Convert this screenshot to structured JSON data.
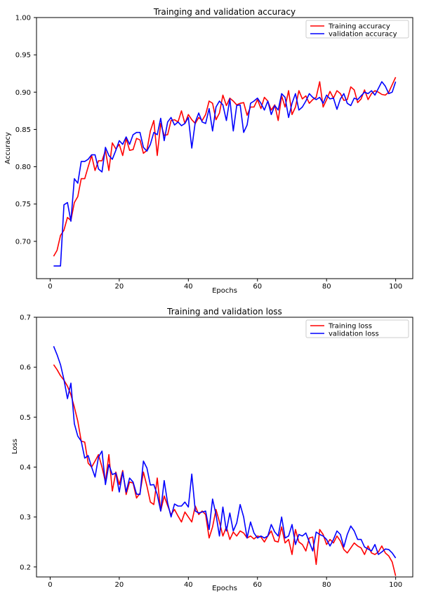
{
  "chart_data": [
    {
      "type": "line",
      "title": "Trainging and validation accuracy",
      "xlabel": "Epochs",
      "ylabel": "Accuracy",
      "xlim": [
        -3.95,
        104.95
      ],
      "ylim": [
        0.65,
        1.0
      ],
      "xticks": [
        0,
        20,
        40,
        60,
        80,
        100
      ],
      "yticks": [
        0.7,
        0.75,
        0.8,
        0.85,
        0.9,
        0.95,
        1.0
      ],
      "ytick_labels": [
        "0.70",
        "0.75",
        "0.80",
        "0.85",
        "0.90",
        "0.95",
        "1.00"
      ],
      "grid": false,
      "legend": "top-right",
      "series": [
        {
          "name": "Training accuracy",
          "color": "#ff0000",
          "x": [
            1,
            2,
            3,
            4,
            5,
            6,
            7,
            8,
            9,
            10,
            11,
            12,
            13,
            14,
            15,
            16,
            17,
            18,
            19,
            20,
            21,
            22,
            23,
            24,
            25,
            26,
            27,
            28,
            29,
            30,
            31,
            32,
            33,
            34,
            35,
            36,
            37,
            38,
            39,
            40,
            41,
            42,
            43,
            44,
            45,
            46,
            47,
            48,
            49,
            50,
            51,
            52,
            53,
            54,
            55,
            56,
            57,
            58,
            59,
            60,
            61,
            62,
            63,
            64,
            65,
            66,
            67,
            68,
            69,
            70,
            71,
            72,
            73,
            74,
            75,
            76,
            77,
            78,
            79,
            80,
            81,
            82,
            83,
            84,
            85,
            86,
            87,
            88,
            89,
            90,
            91,
            92,
            93,
            94,
            95,
            96,
            97,
            98,
            99,
            100
          ],
          "values": [
            0.68,
            0.688,
            0.708,
            0.715,
            0.732,
            0.728,
            0.752,
            0.76,
            0.784,
            0.784,
            0.8,
            0.815,
            0.795,
            0.808,
            0.808,
            0.822,
            0.795,
            0.832,
            0.824,
            0.83,
            0.815,
            0.838,
            0.822,
            0.823,
            0.838,
            0.836,
            0.818,
            0.822,
            0.848,
            0.862,
            0.815,
            0.858,
            0.842,
            0.843,
            0.862,
            0.863,
            0.86,
            0.875,
            0.858,
            0.87,
            0.863,
            0.858,
            0.866,
            0.862,
            0.87,
            0.888,
            0.885,
            0.863,
            0.872,
            0.896,
            0.882,
            0.892,
            0.888,
            0.883,
            0.885,
            0.886,
            0.869,
            0.88,
            0.88,
            0.89,
            0.878,
            0.893,
            0.888,
            0.876,
            0.883,
            0.862,
            0.895,
            0.88,
            0.902,
            0.87,
            0.88,
            0.902,
            0.891,
            0.895,
            0.885,
            0.89,
            0.893,
            0.914,
            0.88,
            0.89,
            0.901,
            0.892,
            0.902,
            0.898,
            0.889,
            0.89,
            0.907,
            0.903,
            0.886,
            0.891,
            0.903,
            0.89,
            0.898,
            0.902,
            0.9,
            0.897,
            0.896,
            0.9,
            0.91,
            0.92
          ]
        },
        {
          "name": "validation accuracy",
          "color": "#0000ff",
          "x": [
            1,
            2,
            3,
            4,
            5,
            6,
            7,
            8,
            9,
            10,
            11,
            12,
            13,
            14,
            15,
            16,
            17,
            18,
            19,
            20,
            21,
            22,
            23,
            24,
            25,
            26,
            27,
            28,
            29,
            30,
            31,
            32,
            33,
            34,
            35,
            36,
            37,
            38,
            39,
            40,
            41,
            42,
            43,
            44,
            45,
            46,
            47,
            48,
            49,
            50,
            51,
            52,
            53,
            54,
            55,
            56,
            57,
            58,
            59,
            60,
            61,
            62,
            63,
            64,
            65,
            66,
            67,
            68,
            69,
            70,
            71,
            72,
            73,
            74,
            75,
            76,
            77,
            78,
            79,
            80,
            81,
            82,
            83,
            84,
            85,
            86,
            87,
            88,
            89,
            90,
            91,
            92,
            93,
            94,
            95,
            96,
            97,
            98,
            99,
            100
          ],
          "values": [
            0.667,
            0.667,
            0.667,
            0.749,
            0.752,
            0.727,
            0.784,
            0.778,
            0.807,
            0.807,
            0.81,
            0.816,
            0.816,
            0.797,
            0.793,
            0.826,
            0.815,
            0.81,
            0.822,
            0.835,
            0.83,
            0.84,
            0.83,
            0.843,
            0.846,
            0.846,
            0.826,
            0.821,
            0.83,
            0.846,
            0.843,
            0.865,
            0.835,
            0.86,
            0.866,
            0.856,
            0.86,
            0.855,
            0.858,
            0.866,
            0.825,
            0.86,
            0.872,
            0.86,
            0.858,
            0.878,
            0.848,
            0.88,
            0.888,
            0.883,
            0.862,
            0.891,
            0.848,
            0.882,
            0.883,
            0.846,
            0.856,
            0.885,
            0.888,
            0.892,
            0.885,
            0.876,
            0.888,
            0.87,
            0.882,
            0.876,
            0.898,
            0.893,
            0.866,
            0.885,
            0.898,
            0.876,
            0.88,
            0.888,
            0.898,
            0.893,
            0.89,
            0.893,
            0.885,
            0.896,
            0.891,
            0.892,
            0.877,
            0.891,
            0.898,
            0.885,
            0.882,
            0.892,
            0.89,
            0.895,
            0.9,
            0.898,
            0.902,
            0.896,
            0.905,
            0.914,
            0.908,
            0.898,
            0.9,
            0.914
          ]
        }
      ]
    },
    {
      "type": "line",
      "title": "Training and validation loss",
      "xlabel": "Epochs",
      "ylabel": "Loss",
      "xlim": [
        -3.95,
        104.95
      ],
      "ylim": [
        0.18,
        0.7
      ],
      "xticks": [
        0,
        20,
        40,
        60,
        80,
        100
      ],
      "yticks": [
        0.2,
        0.3,
        0.4,
        0.5,
        0.6,
        0.7
      ],
      "ytick_labels": [
        "0.2",
        "0.3",
        "0.4",
        "0.5",
        "0.6",
        "0.7"
      ],
      "grid": false,
      "legend": "top-right",
      "series": [
        {
          "name": "Training loss",
          "color": "#ff0000",
          "x": [
            1,
            2,
            3,
            4,
            5,
            6,
            7,
            8,
            9,
            10,
            11,
            12,
            13,
            14,
            15,
            16,
            17,
            18,
            19,
            20,
            21,
            22,
            23,
            24,
            25,
            26,
            27,
            28,
            29,
            30,
            31,
            32,
            33,
            34,
            35,
            36,
            37,
            38,
            39,
            40,
            41,
            42,
            43,
            44,
            45,
            46,
            47,
            48,
            49,
            50,
            51,
            52,
            53,
            54,
            55,
            56,
            57,
            58,
            59,
            60,
            61,
            62,
            63,
            64,
            65,
            66,
            67,
            68,
            69,
            70,
            71,
            72,
            73,
            74,
            75,
            76,
            77,
            78,
            79,
            80,
            81,
            82,
            83,
            84,
            85,
            86,
            87,
            88,
            89,
            90,
            91,
            92,
            93,
            94,
            95,
            96,
            97,
            98,
            99,
            100
          ],
          "values": [
            0.605,
            0.595,
            0.583,
            0.574,
            0.562,
            0.545,
            0.52,
            0.492,
            0.452,
            0.45,
            0.408,
            0.4,
            0.412,
            0.425,
            0.4,
            0.37,
            0.425,
            0.352,
            0.39,
            0.365,
            0.393,
            0.345,
            0.37,
            0.368,
            0.338,
            0.348,
            0.39,
            0.362,
            0.33,
            0.325,
            0.378,
            0.312,
            0.342,
            0.323,
            0.305,
            0.315,
            0.302,
            0.29,
            0.31,
            0.3,
            0.29,
            0.322,
            0.305,
            0.312,
            0.305,
            0.258,
            0.28,
            0.315,
            0.29,
            0.262,
            0.28,
            0.255,
            0.27,
            0.262,
            0.272,
            0.268,
            0.258,
            0.262,
            0.256,
            0.262,
            0.26,
            0.25,
            0.262,
            0.272,
            0.252,
            0.25,
            0.28,
            0.248,
            0.255,
            0.225,
            0.275,
            0.25,
            0.245,
            0.232,
            0.258,
            0.26,
            0.205,
            0.275,
            0.265,
            0.245,
            0.255,
            0.248,
            0.262,
            0.252,
            0.235,
            0.228,
            0.238,
            0.248,
            0.242,
            0.238,
            0.225,
            0.242,
            0.228,
            0.225,
            0.23,
            0.242,
            0.228,
            0.222,
            0.21,
            0.182
          ]
        },
        {
          "name": "validation loss",
          "color": "#0000ff",
          "x": [
            1,
            2,
            3,
            4,
            5,
            6,
            7,
            8,
            9,
            10,
            11,
            12,
            13,
            14,
            15,
            16,
            17,
            18,
            19,
            20,
            21,
            22,
            23,
            24,
            25,
            26,
            27,
            28,
            29,
            30,
            31,
            32,
            33,
            34,
            35,
            36,
            37,
            38,
            39,
            40,
            41,
            42,
            43,
            44,
            45,
            46,
            47,
            48,
            49,
            50,
            51,
            52,
            53,
            54,
            55,
            56,
            57,
            58,
            59,
            60,
            61,
            62,
            63,
            64,
            65,
            66,
            67,
            68,
            69,
            70,
            71,
            72,
            73,
            74,
            75,
            76,
            77,
            78,
            79,
            80,
            81,
            82,
            83,
            84,
            85,
            86,
            87,
            88,
            89,
            90,
            91,
            92,
            93,
            94,
            95,
            96,
            97,
            98,
            99,
            100
          ],
          "values": [
            0.642,
            0.625,
            0.605,
            0.575,
            0.537,
            0.568,
            0.487,
            0.462,
            0.452,
            0.418,
            0.423,
            0.4,
            0.38,
            0.42,
            0.432,
            0.365,
            0.405,
            0.385,
            0.388,
            0.35,
            0.39,
            0.35,
            0.378,
            0.37,
            0.346,
            0.345,
            0.412,
            0.398,
            0.364,
            0.365,
            0.345,
            0.312,
            0.373,
            0.328,
            0.3,
            0.326,
            0.322,
            0.322,
            0.33,
            0.32,
            0.386,
            0.312,
            0.308,
            0.31,
            0.312,
            0.275,
            0.336,
            0.305,
            0.262,
            0.32,
            0.272,
            0.308,
            0.272,
            0.288,
            0.325,
            0.3,
            0.258,
            0.29,
            0.268,
            0.258,
            0.262,
            0.258,
            0.262,
            0.285,
            0.27,
            0.262,
            0.3,
            0.258,
            0.262,
            0.285,
            0.245,
            0.265,
            0.262,
            0.268,
            0.25,
            0.232,
            0.27,
            0.265,
            0.262,
            0.255,
            0.242,
            0.255,
            0.272,
            0.265,
            0.24,
            0.265,
            0.282,
            0.272,
            0.255,
            0.255,
            0.24,
            0.236,
            0.232,
            0.245,
            0.225,
            0.23,
            0.236,
            0.235,
            0.228,
            0.218
          ]
        }
      ]
    }
  ]
}
